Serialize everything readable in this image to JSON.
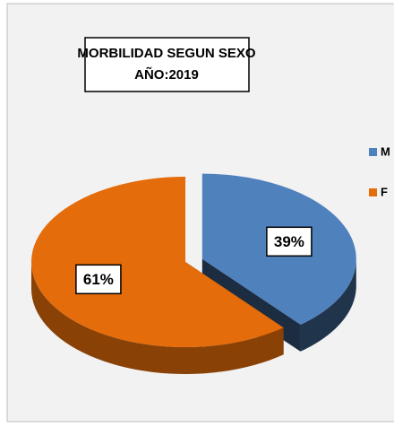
{
  "chart_data": {
    "type": "pie3d",
    "title": "MORBILIDAD SEGUN SEXO",
    "subtitle": "AÑO:2019",
    "categories": [
      "M",
      "F"
    ],
    "values": [
      39,
      61
    ],
    "value_labels": [
      "39%",
      "61%"
    ],
    "colors": [
      "#4f81bd",
      "#e46c0a"
    ],
    "legend": "right"
  }
}
